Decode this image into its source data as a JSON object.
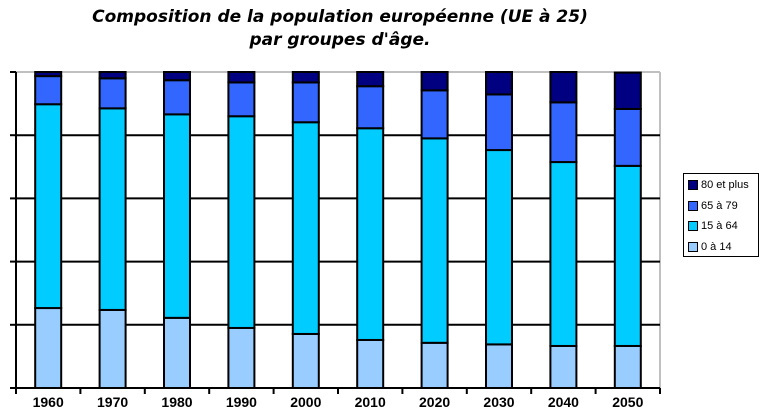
{
  "chart_data": {
    "type": "bar",
    "stacked": true,
    "title": [
      "Composition de la population européenne (UE à 25)",
      "par groupes d'âge."
    ],
    "xlabel": "",
    "ylabel": "",
    "ylim": [
      0,
      100
    ],
    "y_tick_labels_shown": false,
    "grid": true,
    "legend_position": "right",
    "categories": [
      "1960",
      "1970",
      "1980",
      "1990",
      "2000",
      "2010",
      "2020",
      "2030",
      "2040",
      "2050"
    ],
    "series": [
      {
        "name": "0 à 14",
        "color": "#99CCFF",
        "values": [
          25.3,
          24.7,
          22.2,
          19.0,
          17.1,
          15.2,
          14.3,
          13.8,
          13.3,
          13.3
        ]
      },
      {
        "name": "15 à 64",
        "color": "#00CCFF",
        "values": [
          64.5,
          63.8,
          64.4,
          67.0,
          67.0,
          67.0,
          64.7,
          61.5,
          58.2,
          57.0
        ]
      },
      {
        "name": "65 à 79",
        "color": "#3366FF",
        "values": [
          8.9,
          9.5,
          10.8,
          10.7,
          12.6,
          13.3,
          15.2,
          17.6,
          18.9,
          18.0
        ]
      },
      {
        "name": "80 et plus",
        "color": "#000080",
        "values": [
          1.3,
          2.0,
          2.6,
          3.3,
          3.3,
          4.5,
          5.8,
          7.1,
          9.6,
          11.5
        ]
      }
    ]
  }
}
